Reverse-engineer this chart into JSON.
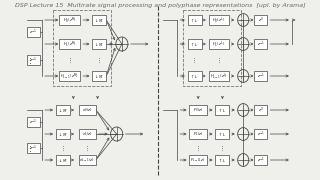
{
  "bg_color": "#efefeb",
  "line_color": "#444444",
  "box_color": "#ffffff",
  "box_edge": "#444444",
  "dashed_box_color": "#777777",
  "text_color": "#222222",
  "title": "DSP Lecture 15  Multirate signal processing and polyphase representations  [upl. by Arama]",
  "title_fontsize": 4.5,
  "title_color": "#666666"
}
